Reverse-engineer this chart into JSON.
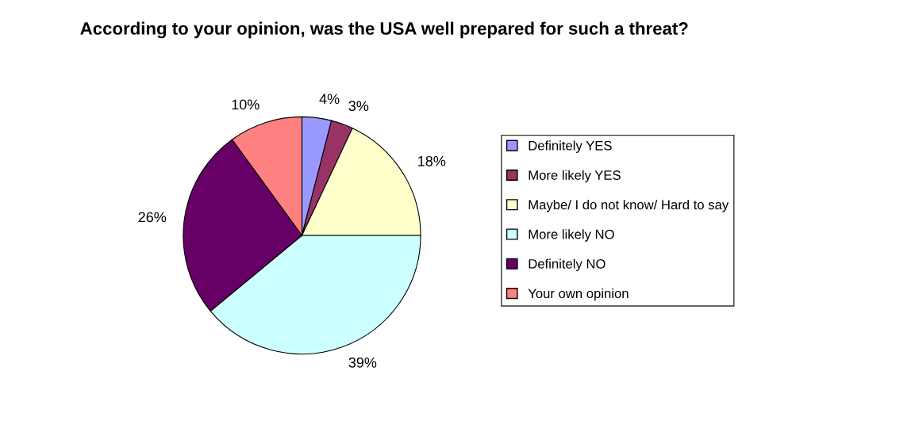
{
  "chart_data": {
    "type": "pie",
    "title": "According to your opinion, was the USA well prepared for such a threat?",
    "categories": [
      "Definitely YES",
      "More likely YES",
      "Maybe/ I do not know/ Hard to say",
      "More likely NO",
      "Definitely NO",
      "Your own opinion"
    ],
    "values": [
      4,
      3,
      18,
      39,
      26,
      10
    ],
    "value_labels": [
      "4%",
      "3%",
      "18%",
      "39%",
      "26%",
      "10%"
    ],
    "colors": [
      "#9999ff",
      "#993366",
      "#ffffcc",
      "#ccffff",
      "#660066",
      "#ff8080"
    ],
    "legend": "right"
  }
}
